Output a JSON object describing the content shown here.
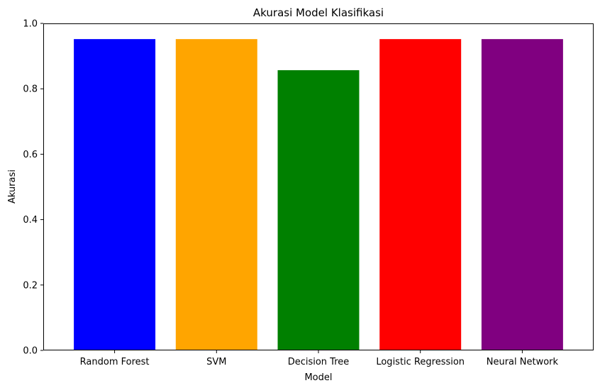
{
  "chart_data": {
    "type": "bar",
    "title": "Akurasi Model Klasifikasi",
    "xlabel": "Model",
    "ylabel": "Akurasi",
    "categories": [
      "Random Forest",
      "SVM",
      "Decision Tree",
      "Logistic Regression",
      "Neural Network"
    ],
    "values": [
      0.952,
      0.952,
      0.857,
      0.952,
      0.952
    ],
    "colors": [
      "#0000ff",
      "#ffa500",
      "#008000",
      "#ff0000",
      "#800080"
    ],
    "ylim": [
      0,
      1.0
    ],
    "yticks": [
      "0.0",
      "0.2",
      "0.4",
      "0.6",
      "0.8",
      "1.0"
    ],
    "grid": false,
    "legend": "none"
  }
}
